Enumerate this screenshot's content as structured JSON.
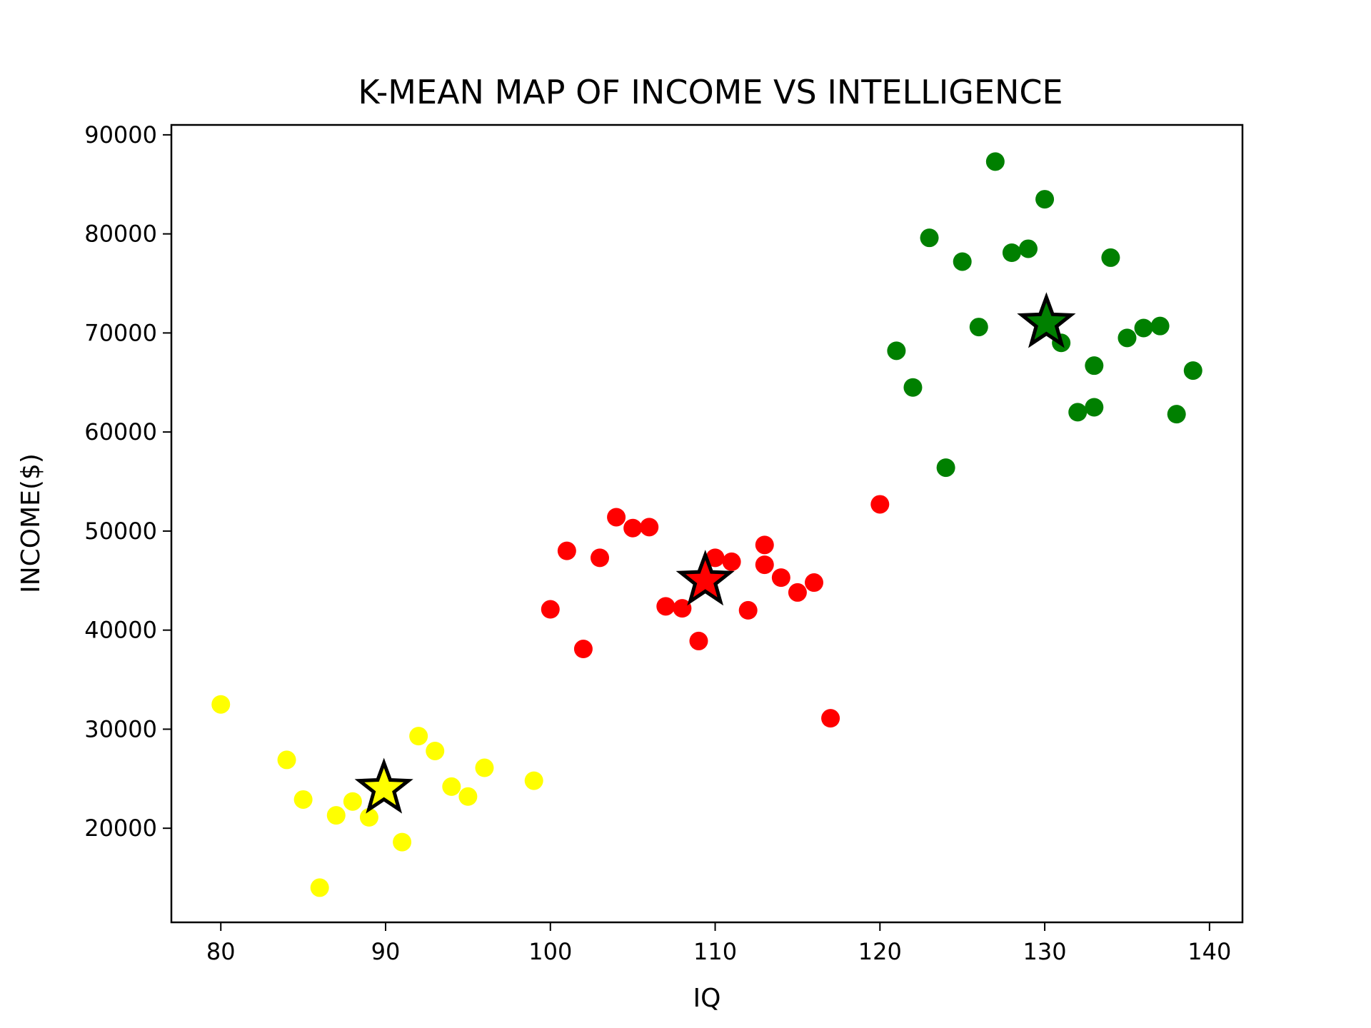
{
  "chart_data": {
    "type": "scatter",
    "title": "K-MEAN MAP OF INCOME VS INTELLIGENCE",
    "xlabel": "IQ",
    "ylabel": "INCOME($)",
    "xlim": [
      77,
      142
    ],
    "ylim": [
      10500,
      91000
    ],
    "xticks": [
      80,
      90,
      100,
      110,
      120,
      130,
      140
    ],
    "yticks": [
      20000,
      30000,
      40000,
      50000,
      60000,
      70000,
      80000,
      90000
    ],
    "grid": false,
    "series": [
      {
        "color": "#ffff00",
        "points": [
          [
            80,
            32500
          ],
          [
            84,
            26900
          ],
          [
            85,
            22900
          ],
          [
            86,
            14000
          ],
          [
            87,
            21300
          ],
          [
            88,
            22700
          ],
          [
            89,
            21100
          ],
          [
            91,
            18600
          ],
          [
            92,
            29300
          ],
          [
            93,
            27800
          ],
          [
            94,
            24200
          ],
          [
            95,
            23200
          ],
          [
            96,
            26100
          ],
          [
            99,
            24800
          ]
        ]
      },
      {
        "color": "#ff0000",
        "points": [
          [
            100,
            42100
          ],
          [
            101,
            48000
          ],
          [
            102,
            38100
          ],
          [
            103,
            47300
          ],
          [
            104,
            51400
          ],
          [
            105,
            50300
          ],
          [
            106,
            50400
          ],
          [
            107,
            42400
          ],
          [
            108,
            42200
          ],
          [
            109,
            38900
          ],
          [
            110,
            47300
          ],
          [
            111,
            46900
          ],
          [
            112,
            42000
          ],
          [
            113,
            48600
          ],
          [
            113,
            46600
          ],
          [
            114,
            45300
          ],
          [
            115,
            43800
          ],
          [
            116,
            44800
          ],
          [
            117,
            31100
          ],
          [
            120,
            52700
          ]
        ]
      },
      {
        "color": "#008000",
        "points": [
          [
            121,
            68200
          ],
          [
            122,
            64500
          ],
          [
            123,
            79600
          ],
          [
            124,
            56400
          ],
          [
            125,
            77200
          ],
          [
            126,
            70600
          ],
          [
            127,
            87300
          ],
          [
            128,
            78100
          ],
          [
            129,
            78500
          ],
          [
            130,
            83500
          ],
          [
            131,
            69000
          ],
          [
            132,
            62000
          ],
          [
            133,
            66700
          ],
          [
            133,
            62500
          ],
          [
            134,
            77600
          ],
          [
            135,
            69500
          ],
          [
            136,
            70500
          ],
          [
            137,
            70700
          ],
          [
            138,
            61800
          ],
          [
            139,
            66200
          ]
        ]
      }
    ],
    "centroids": [
      {
        "x": 89.9,
        "y": 24000,
        "color": "#ffff00"
      },
      {
        "x": 109.4,
        "y": 45000,
        "color": "#ff0000"
      },
      {
        "x": 130.1,
        "y": 71000,
        "color": "#008000"
      }
    ]
  }
}
